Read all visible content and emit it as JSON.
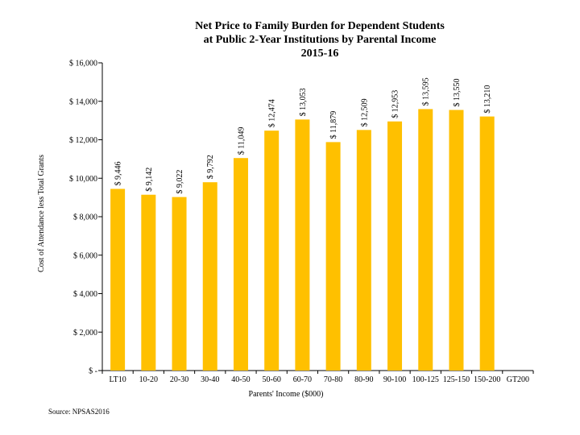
{
  "chart_data": {
    "type": "bar",
    "title_lines": [
      "Net Price to Family Burden for Dependent Students",
      "at Public 2-Year Institutions by Parental Income",
      "2015-16"
    ],
    "xlabel": "Parents' Income ($000)",
    "ylabel": "Cost of Attendance less Total Grants",
    "ylim": [
      0,
      16000
    ],
    "ytick_values": [
      0,
      2000,
      4000,
      6000,
      8000,
      10000,
      12000,
      14000,
      16000
    ],
    "ytick_labels": [
      "$ -",
      "$ 2,000",
      "$ 4,000",
      "$ 6,000",
      "$ 8,000",
      "$ 10,000",
      "$ 12,000",
      "$ 14,000",
      "$ 16,000"
    ],
    "categories": [
      "LT10",
      "10-20",
      "20-30",
      "30-40",
      "40-50",
      "50-60",
      "60-70",
      "70-80",
      "80-90",
      "90-100",
      "100-125",
      "125-150",
      "150-200",
      "GT200"
    ],
    "values": [
      9446,
      9142,
      9022,
      9792,
      11049,
      12474,
      13053,
      11879,
      12509,
      12953,
      13595,
      13550,
      13210,
      null
    ],
    "data_labels": [
      "$ 9,446",
      "$ 9,142",
      "$ 9,022",
      "$ 9,792",
      "$ 11,049",
      "$ 12,474",
      "$ 13,053",
      "$ 11,879",
      "$ 12,509",
      "$ 12,953",
      "$ 13,595",
      "$ 13,550",
      "$ 13,210",
      ""
    ],
    "bar_color": "#FFC000",
    "grid": false,
    "legend": "none"
  },
  "source": "Source: NPSAS2016"
}
